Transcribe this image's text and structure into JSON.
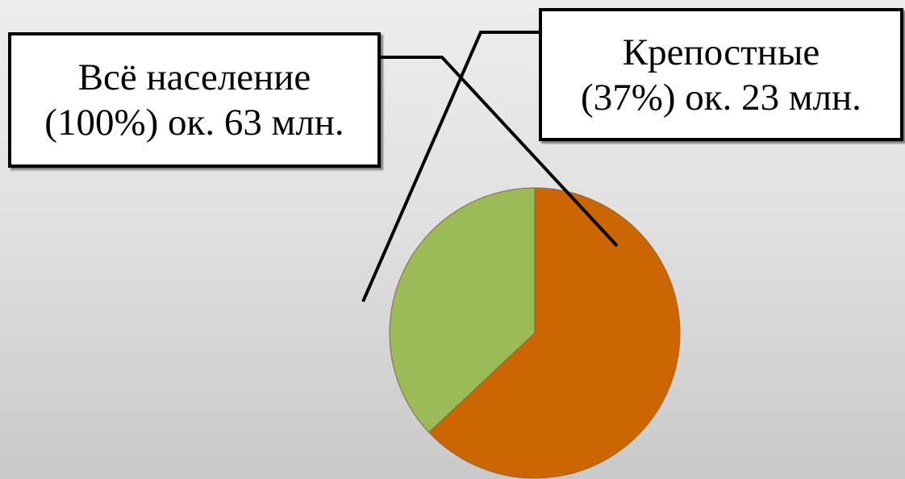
{
  "chart_data": {
    "type": "pie",
    "title": "",
    "slices": [
      {
        "label": "Крепостные",
        "value": 37,
        "color": "#9bbb59"
      },
      {
        "label": "",
        "value": 63,
        "color": "#cc6600"
      }
    ]
  },
  "callouts": {
    "all_population": {
      "line1": "Всё население",
      "line2": "(100%) ок. 63 млн."
    },
    "serfs": {
      "line1": "Крепостные",
      "line2": "(37%) ок. 23 млн."
    }
  },
  "colors": {
    "serfs_slice": "#9bbb59",
    "rest_slice": "#cc6600",
    "leader_line": "#000000"
  }
}
